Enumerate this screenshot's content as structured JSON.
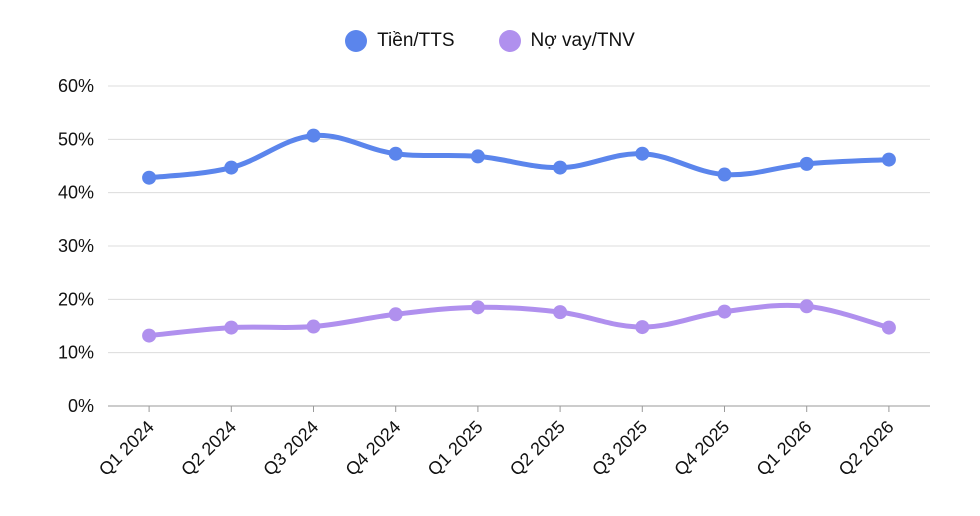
{
  "chart_data": {
    "type": "line",
    "categories": [
      "Q1 2024",
      "Q2 2024",
      "Q3 2024",
      "Q4 2024",
      "Q1 2025",
      "Q2 2025",
      "Q3 2025",
      "Q4 2025",
      "Q1 2026",
      "Q2 2026"
    ],
    "series": [
      {
        "name": "Tiền/TTS",
        "color": "#5B85EC",
        "values": [
          42.8,
          44.7,
          50.7,
          47.3,
          46.8,
          44.7,
          47.3,
          43.4,
          45.4,
          46.2
        ]
      },
      {
        "name": "Nợ vay/TNV",
        "color": "#B090EE",
        "values": [
          13.2,
          14.7,
          14.9,
          17.2,
          18.5,
          17.6,
          14.8,
          17.7,
          18.7,
          14.7
        ]
      }
    ],
    "yticks": [
      "0%",
      "10%",
      "20%",
      "30%",
      "40%",
      "50%",
      "60%"
    ],
    "ylim": [
      0,
      60
    ],
    "grid": true,
    "legend_position": "top-center"
  }
}
